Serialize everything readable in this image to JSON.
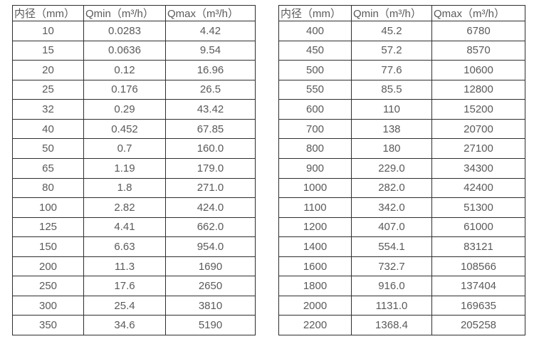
{
  "colors": {
    "background": "#ffffff",
    "border": "#2e2e2e",
    "text": "#5a5a5a"
  },
  "chart_data": [
    {
      "type": "table",
      "headers": [
        "内径（mm）",
        "Qmin（m³/h）",
        "Qmax（m³/h）"
      ],
      "rows": [
        [
          "10",
          "0.0283",
          "4.42"
        ],
        [
          "15",
          "0.0636",
          "9.54"
        ],
        [
          "20",
          "0.12",
          "16.96"
        ],
        [
          "25",
          "0.176",
          "26.5"
        ],
        [
          "32",
          "0.29",
          "43.42"
        ],
        [
          "40",
          "0.452",
          "67.85"
        ],
        [
          "50",
          "0.7",
          "160.0"
        ],
        [
          "65",
          "1.19",
          "179.0"
        ],
        [
          "80",
          "1.8",
          "271.0"
        ],
        [
          "100",
          "2.82",
          "424.0"
        ],
        [
          "125",
          "4.41",
          "662.0"
        ],
        [
          "150",
          "6.63",
          "954.0"
        ],
        [
          "200",
          "11.3",
          "1690"
        ],
        [
          "250",
          "17.6",
          "2650"
        ],
        [
          "300",
          "25.4",
          "3810"
        ],
        [
          "350",
          "34.6",
          "5190"
        ]
      ]
    },
    {
      "type": "table",
      "headers": [
        "内径（mm）",
        "Qmin（m³/h）",
        "Qmax（m³/h）"
      ],
      "rows": [
        [
          "400",
          "45.2",
          "6780"
        ],
        [
          "450",
          "57.2",
          "8570"
        ],
        [
          "500",
          "77.6",
          "10600"
        ],
        [
          "550",
          "85.5",
          "12800"
        ],
        [
          "600",
          "110",
          "15200"
        ],
        [
          "700",
          "138",
          "20700"
        ],
        [
          "800",
          "180",
          "27100"
        ],
        [
          "900",
          "229.0",
          "34300"
        ],
        [
          "1000",
          "282.0",
          "42400"
        ],
        [
          "1100",
          "342.0",
          "51300"
        ],
        [
          "1200",
          "407.0",
          "61000"
        ],
        [
          "1400",
          "554.1",
          "83121"
        ],
        [
          "1600",
          "732.7",
          "108566"
        ],
        [
          "1800",
          "916.0",
          "137404"
        ],
        [
          "2000",
          "1131.0",
          "169635"
        ],
        [
          "2200",
          "1368.4",
          "205258"
        ]
      ]
    }
  ]
}
